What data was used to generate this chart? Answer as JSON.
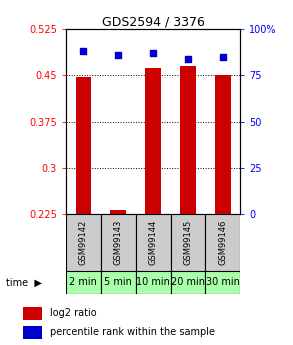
{
  "title": "GDS2594 / 3376",
  "samples": [
    "GSM99142",
    "GSM99143",
    "GSM99144",
    "GSM99145",
    "GSM99146"
  ],
  "time_labels": [
    "2 min",
    "5 min",
    "10 min",
    "20 min",
    "30 min"
  ],
  "log2_ratio": [
    0.447,
    0.232,
    0.462,
    0.465,
    0.451
  ],
  "percentile_rank": [
    88,
    86,
    87,
    84,
    85
  ],
  "left_ylim": [
    0.225,
    0.525
  ],
  "right_ylim": [
    0,
    100
  ],
  "left_yticks": [
    0.225,
    0.3,
    0.375,
    0.45,
    0.525
  ],
  "right_yticks": [
    0,
    25,
    50,
    75,
    100
  ],
  "left_ytick_labels": [
    "0.225",
    "0.3",
    "0.375",
    "0.45",
    "0.525"
  ],
  "right_ytick_labels": [
    "0",
    "25",
    "50",
    "75",
    "100%"
  ],
  "bar_color": "#cc0000",
  "dot_color": "#0000cc",
  "bar_width": 0.45,
  "background_color": "#ffffff",
  "plot_bg": "#ffffff",
  "sample_box_color": "#cccccc",
  "time_box_color": "#aaffaa",
  "legend_bar_label": "log2 ratio",
  "legend_dot_label": "percentile rank within the sample",
  "title_fontsize": 9,
  "tick_fontsize": 7,
  "label_fontsize": 6,
  "time_fontsize": 7
}
